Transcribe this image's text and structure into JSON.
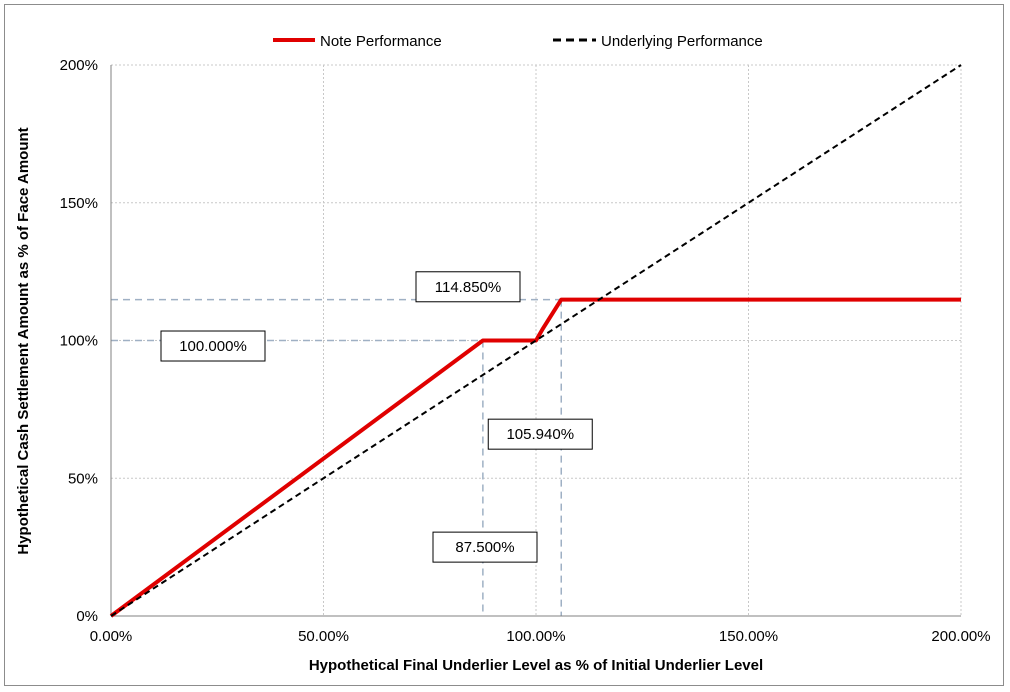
{
  "chart_data": {
    "type": "line",
    "xlabel": "Hypothetical Final Underlier Level as % of Initial Underlier Level",
    "ylabel": "Hypothetical Cash Settlement Amount as % of Face Amount",
    "xlim": [
      0,
      200
    ],
    "ylim": [
      0,
      200
    ],
    "x_ticks": [
      0,
      50,
      100,
      150,
      200
    ],
    "x_tick_labels": [
      "0.00%",
      "50.00%",
      "100.00%",
      "150.00%",
      "200.00%"
    ],
    "y_ticks": [
      0,
      50,
      100,
      150,
      200
    ],
    "y_tick_labels": [
      "0%",
      "50%",
      "100%",
      "150%",
      "200%"
    ],
    "grid": true,
    "legend_position": "top",
    "series": [
      {
        "name": "Note Performance",
        "color": "#e00000",
        "style": "solid",
        "x": [
          0,
          87.5,
          100,
          101.5,
          105.94,
          200
        ],
        "y": [
          0,
          100,
          100,
          104,
          114.85,
          114.85
        ]
      },
      {
        "name": "Underlying Performance",
        "color": "#000000",
        "style": "dashed",
        "x": [
          0,
          200
        ],
        "y": [
          0,
          200
        ]
      }
    ],
    "reference_lines": [
      {
        "axis": "y",
        "value": 114.85,
        "x_to": 105.94
      },
      {
        "axis": "y",
        "value": 100,
        "x_to": 87.5
      },
      {
        "axis": "x",
        "value": 87.5,
        "y_to": 100
      },
      {
        "axis": "x",
        "value": 105.94,
        "y_to": 114.85
      }
    ],
    "annotations": [
      {
        "text": "114.850%",
        "x": 84,
        "y": 119.5
      },
      {
        "text": "100.000%",
        "x": 24,
        "y": 98
      },
      {
        "text": "105.940%",
        "x": 101,
        "y": 66
      },
      {
        "text": "87.500%",
        "x": 88,
        "y": 25
      }
    ]
  }
}
